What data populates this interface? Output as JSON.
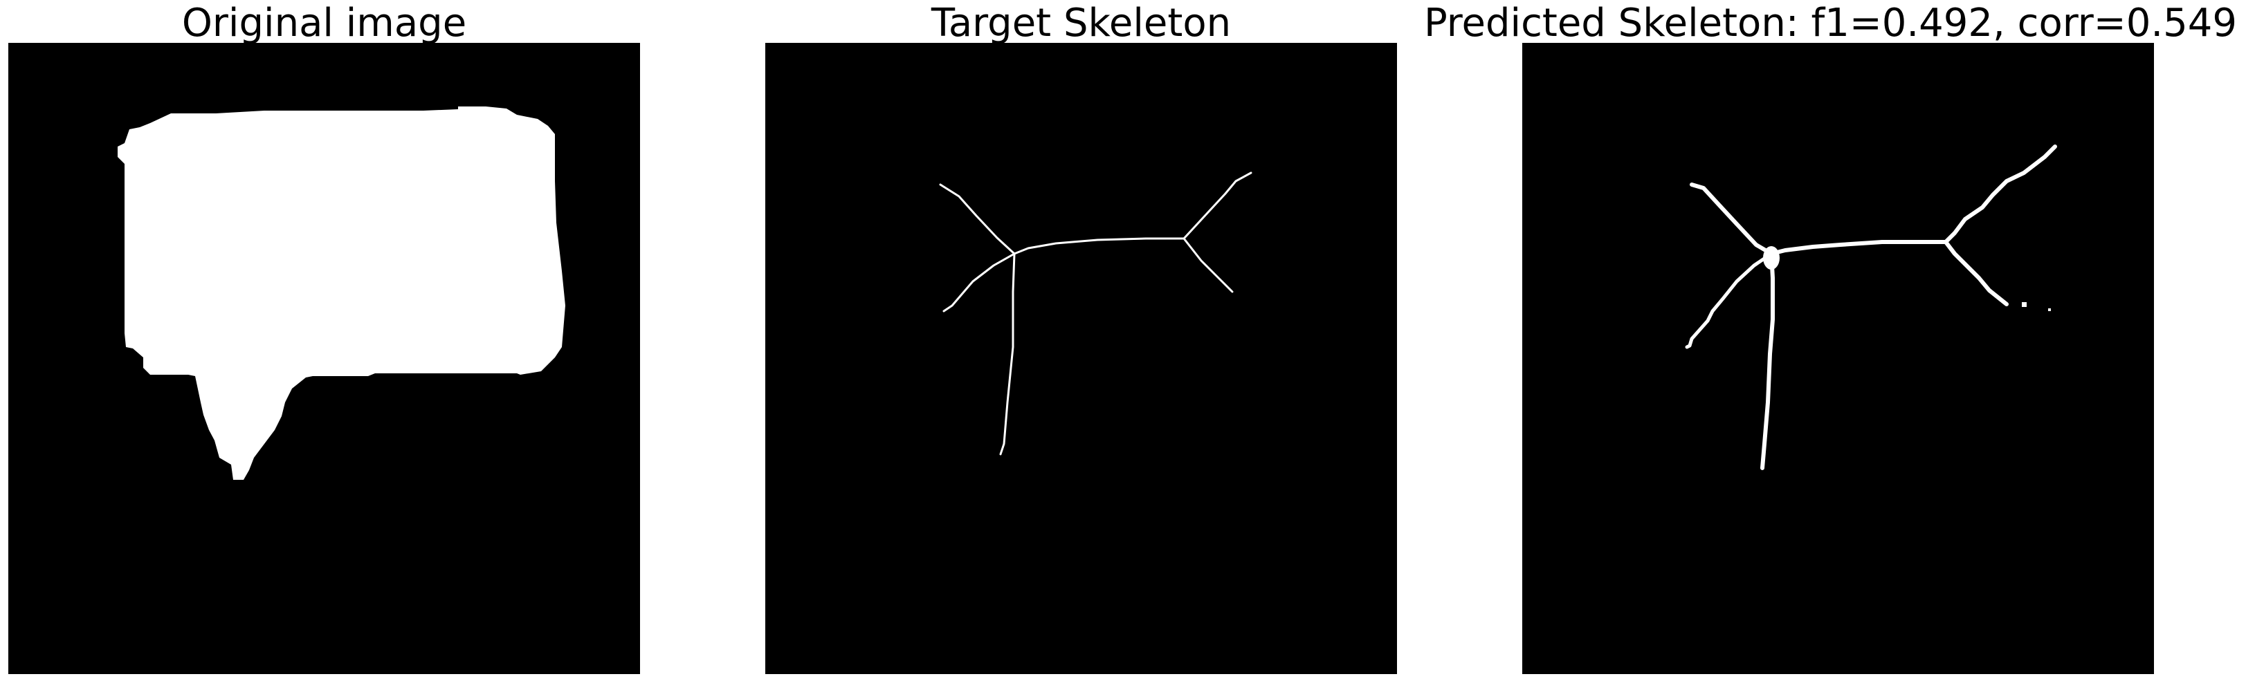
{
  "panels": [
    {
      "title": "Original image",
      "content": "speech-bubble-mask"
    },
    {
      "title": "Target Skeleton",
      "content": "target-skeleton"
    },
    {
      "title": "Predicted Skeleton: f1=0.492, corr=0.549",
      "content": "predicted-skeleton"
    }
  ],
  "colors": {
    "background": "#ffffff",
    "panel": "#000000",
    "foreground": "#ffffff"
  },
  "metrics": {
    "f1": 0.492,
    "corr": 0.549
  }
}
